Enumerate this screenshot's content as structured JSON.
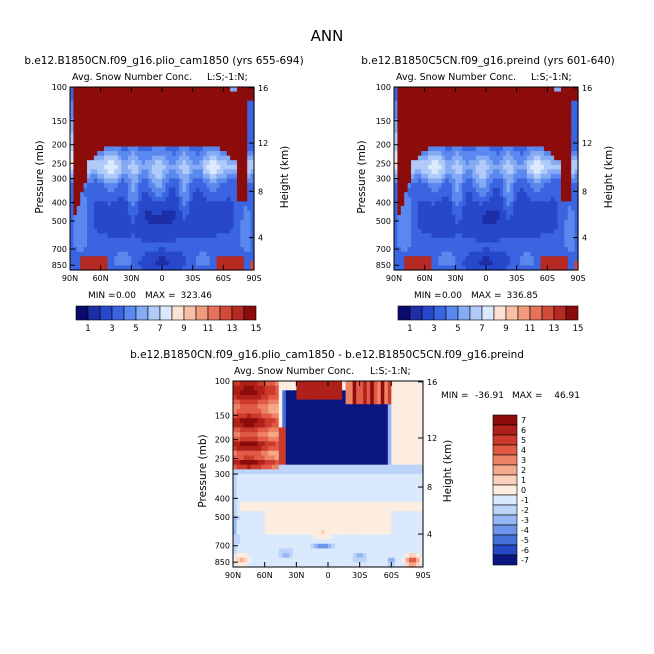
{
  "main_title": "ANN",
  "chart_data": [
    {
      "type": "heatmap",
      "title": "b.e12.B1850CN.f09_g16.plio_cam1850 (yrs 655-694)",
      "subtitle": "Avg. Snow Number Conc.",
      "corner_label": "L:S;-1:N;",
      "ylabel": "Pressure (mb)",
      "y2label": "Height (km)",
      "x_ticks": [
        "90N",
        "60N",
        "30N",
        "0",
        "30S",
        "60S",
        "90S"
      ],
      "y_ticks": [
        "100",
        "150",
        "200",
        "250",
        "300",
        "400",
        "500",
        "700",
        "850"
      ],
      "y2_ticks": [
        "16",
        "12",
        "8",
        "4"
      ],
      "stats": {
        "min_label": "MIN =",
        "min": "0.00",
        "max_label": "MAX =",
        "max": "323.46"
      },
      "colorbar": {
        "labels": [
          "1",
          "3",
          "5",
          "7",
          "9",
          "11",
          "13",
          "15"
        ]
      }
    },
    {
      "type": "heatmap",
      "title": "b.e12.B1850C5CN.f09_g16.preind (yrs 601-640)",
      "subtitle": "Avg. Snow Number Conc.",
      "corner_label": "L:S;-1:N;",
      "ylabel": "Pressure (mb)",
      "y2label": "Height (km)",
      "x_ticks": [
        "90N",
        "60N",
        "30N",
        "0",
        "30S",
        "60S",
        "90S"
      ],
      "y_ticks": [
        "100",
        "150",
        "200",
        "250",
        "300",
        "400",
        "500",
        "700",
        "850"
      ],
      "y2_ticks": [
        "16",
        "12",
        "8",
        "4"
      ],
      "stats": {
        "min_label": "MIN =",
        "min": "0.00",
        "max_label": "MAX =",
        "max": "336.85"
      },
      "colorbar": {
        "labels": [
          "1",
          "3",
          "5",
          "7",
          "9",
          "11",
          "13",
          "15"
        ]
      }
    },
    {
      "type": "heatmap",
      "title": "b.e12.B1850CN.f09_g16.plio_cam1850 - b.e12.B1850C5CN.f09_g16.preind",
      "subtitle": "Avg. Snow Number Conc.",
      "corner_label": "L:S;-1:N;",
      "ylabel": "Pressure (mb)",
      "y2label": "Height (km)",
      "x_ticks": [
        "90N",
        "60N",
        "30N",
        "0",
        "30S",
        "60S",
        "90S"
      ],
      "y_ticks": [
        "100",
        "150",
        "200",
        "250",
        "300",
        "400",
        "500",
        "700",
        "850"
      ],
      "y2_ticks": [
        "16",
        "12",
        "8",
        "4"
      ],
      "stats": {
        "min_label": "MIN =",
        "min": "-36.91",
        "max_label": "MAX =",
        "max": "46.91"
      },
      "colorbar": {
        "labels": [
          "7",
          "6",
          "5",
          "4",
          "3",
          "2",
          "1",
          "0",
          "-1",
          "-2",
          "-3",
          "-4",
          "-5",
          "-6",
          "-7"
        ]
      }
    }
  ],
  "colors": {
    "seq": [
      "#0a0a6e",
      "#1e2ea6",
      "#2848cc",
      "#3a64e0",
      "#5a88ee",
      "#84abf4",
      "#b0cbfa",
      "#dce8fc",
      "#fde2d4",
      "#f8c0a4",
      "#f29a7c",
      "#e6725a",
      "#d24a3a",
      "#b52a22",
      "#8c0c0c"
    ],
    "div": [
      "#8c0c0c",
      "#b0201a",
      "#cc3a2c",
      "#e05a46",
      "#ee8266",
      "#f6aa8c",
      "#fcd2be",
      "#fdece0",
      "#dbe9fc",
      "#bcd4fa",
      "#95b8f4",
      "#6b94ea",
      "#4470dc",
      "#2448c4",
      "#0a1680"
    ]
  }
}
